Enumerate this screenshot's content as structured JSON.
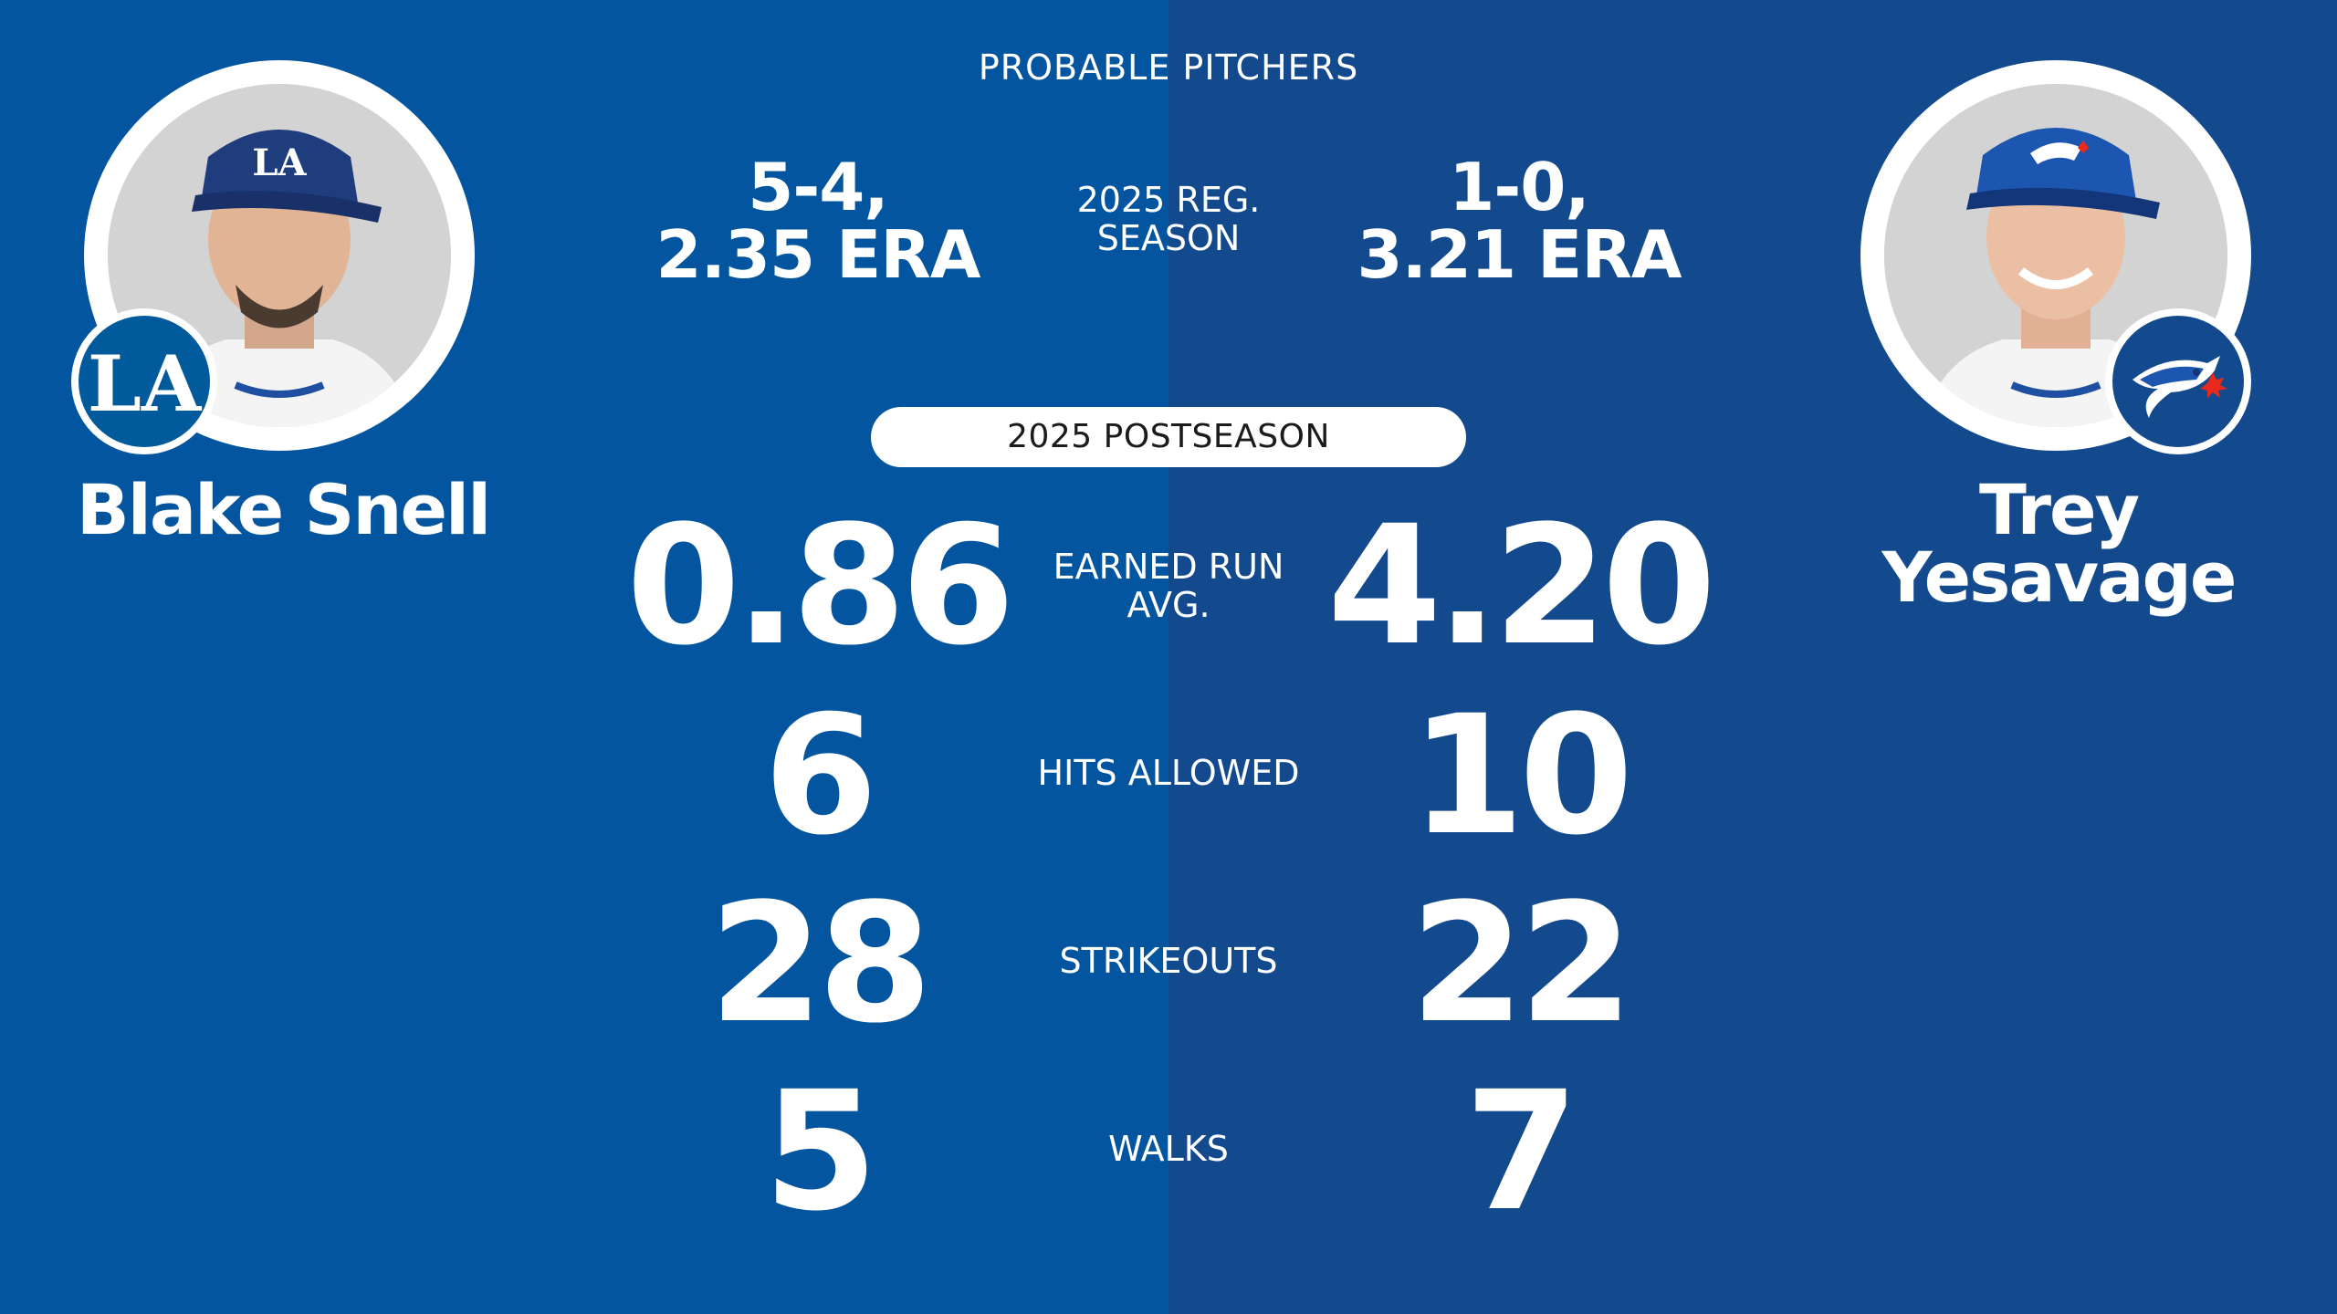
{
  "header": "PROBABLE PITCHERS",
  "colors": {
    "left_bg": "#04559f",
    "right_bg": "#134a8e",
    "pill_text": "#1b1b1b",
    "jays_blue": "#1d56b0",
    "jays_red": "#e8291c",
    "dodgers_blue": "#005a9c"
  },
  "left_player": {
    "name": "Blake Snell",
    "team_logo_icon": "dodgers-la-logo-icon",
    "reg_season_line1": "5-4,",
    "reg_season_line2": "2.35 ERA"
  },
  "right_player": {
    "name_line1": "Trey",
    "name_line2": "Yesavage",
    "team_logo_icon": "blue-jays-logo-icon",
    "reg_season_line1": "1-0,",
    "reg_season_line2": "3.21 ERA"
  },
  "reg_season_label_line1": "2025 REG.",
  "reg_season_label_line2": "SEASON",
  "postseason_label": "2025 POSTSEASON",
  "stats": [
    {
      "label_line1": "EARNED RUN",
      "label_line2": "AVG.",
      "left": "0.86",
      "right": "4.20"
    },
    {
      "label_line1": "HITS ALLOWED",
      "label_line2": "",
      "left": "6",
      "right": "10"
    },
    {
      "label_line1": "STRIKEOUTS",
      "label_line2": "",
      "left": "28",
      "right": "22"
    },
    {
      "label_line1": "WALKS",
      "label_line2": "",
      "left": "5",
      "right": "7"
    }
  ]
}
